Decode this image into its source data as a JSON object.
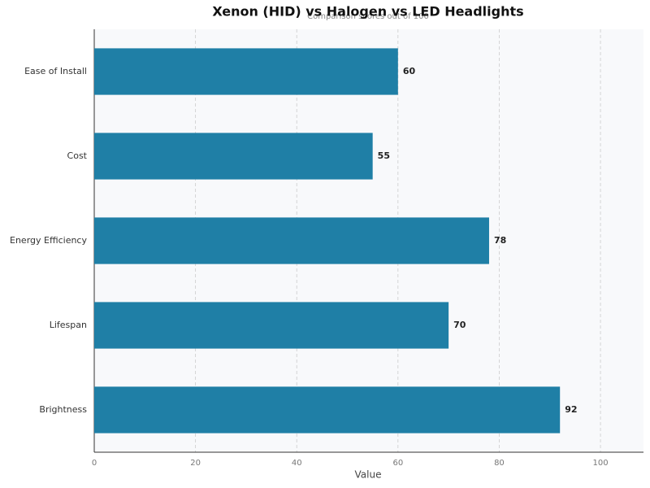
{
  "chart_data": {
    "type": "barh",
    "title": "Xenon (HID) vs Halogen vs LED Headlights",
    "subtitle": "Comparison scores out of 100",
    "x_label": "Value",
    "categories": [
      "Brightness",
      "Lifespan",
      "Energy Efficiency",
      "Cost",
      "Ease of Install"
    ],
    "values": [
      92,
      70,
      78,
      55,
      60
    ],
    "color": "#1f7fa6",
    "xlim": [
      0,
      108.5
    ],
    "xticks": [
      0,
      20,
      40,
      60,
      80,
      100
    ],
    "grid": true
  }
}
